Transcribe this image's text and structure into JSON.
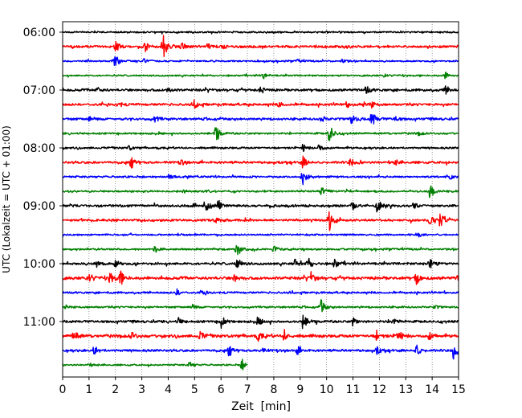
{
  "chart_data": {
    "type": "line",
    "subtype": "seismogram-helicorder",
    "title": "",
    "xlabel": "Zeit  [min]",
    "ylabel": "UTC (Lokalzeit = UTC + 01:00)",
    "xlim": [
      0,
      15
    ],
    "x_ticks": [
      "0",
      "1",
      "2",
      "3",
      "4",
      "5",
      "6",
      "7",
      "8",
      "9",
      "10",
      "11",
      "12",
      "13",
      "14",
      "15"
    ],
    "y_ticks": [
      "06:00",
      "07:00",
      "08:00",
      "09:00",
      "10:00",
      "11:00"
    ],
    "row_minutes": 15,
    "start_time": "06:00",
    "end_time": "12:00",
    "x_grid": true,
    "colors": [
      "#000000",
      "#ff0000",
      "#0000ff",
      "#008000"
    ],
    "traces": [
      {
        "row": 0,
        "color": "#000000",
        "amp": 1.0,
        "events": []
      },
      {
        "row": 1,
        "color": "#ff0000",
        "amp": 1.5,
        "events": [
          [
            2.0,
            6
          ],
          [
            3.1,
            7
          ],
          [
            3.8,
            16
          ],
          [
            4.5,
            5
          ],
          [
            5.5,
            4
          ],
          [
            6.0,
            3
          ]
        ]
      },
      {
        "row": 2,
        "color": "#0000ff",
        "amp": 1.0,
        "events": [
          [
            2.0,
            9
          ],
          [
            3.1,
            3
          ],
          [
            8.9,
            2
          ],
          [
            10.6,
            3
          ]
        ]
      },
      {
        "row": 3,
        "color": "#008000",
        "amp": 1.0,
        "events": [
          [
            7.6,
            4
          ],
          [
            12.2,
            2
          ],
          [
            14.5,
            4
          ]
        ]
      },
      {
        "row": 4,
        "color": "#000000",
        "amp": 1.5,
        "events": [
          [
            1.3,
            3
          ],
          [
            4.0,
            3
          ],
          [
            7.5,
            4
          ],
          [
            11.5,
            5
          ],
          [
            14.5,
            5
          ]
        ]
      },
      {
        "row": 5,
        "color": "#ff0000",
        "amp": 1.5,
        "events": [
          [
            2.1,
            3
          ],
          [
            5.0,
            4
          ],
          [
            8.2,
            3
          ],
          [
            10.8,
            3
          ],
          [
            11.7,
            4
          ]
        ]
      },
      {
        "row": 6,
        "color": "#0000ff",
        "amp": 1.5,
        "events": [
          [
            1.0,
            3
          ],
          [
            3.5,
            4
          ],
          [
            9.8,
            4
          ],
          [
            10.9,
            8
          ],
          [
            11.7,
            11
          ],
          [
            12.6,
            3
          ]
        ]
      },
      {
        "row": 7,
        "color": "#008000",
        "amp": 1.2,
        "events": [
          [
            5.8,
            10
          ],
          [
            10.1,
            13
          ],
          [
            13.5,
            2
          ]
        ]
      },
      {
        "row": 8,
        "color": "#000000",
        "amp": 1.2,
        "events": [
          [
            2.5,
            3
          ],
          [
            9.1,
            5
          ],
          [
            9.7,
            5
          ]
        ]
      },
      {
        "row": 9,
        "color": "#ff0000",
        "amp": 1.5,
        "events": [
          [
            2.6,
            6
          ],
          [
            4.5,
            3
          ],
          [
            9.1,
            7
          ],
          [
            10.9,
            5
          ],
          [
            12.6,
            3
          ]
        ]
      },
      {
        "row": 10,
        "color": "#0000ff",
        "amp": 1.2,
        "events": [
          [
            4.0,
            3
          ],
          [
            9.1,
            10
          ],
          [
            14.7,
            3
          ]
        ]
      },
      {
        "row": 11,
        "color": "#008000",
        "amp": 1.2,
        "events": [
          [
            4.6,
            2
          ],
          [
            9.8,
            5
          ],
          [
            13.9,
            10
          ]
        ]
      },
      {
        "row": 12,
        "color": "#000000",
        "amp": 1.5,
        "events": [
          [
            5.4,
            8
          ],
          [
            5.9,
            7
          ],
          [
            11.0,
            4
          ],
          [
            11.9,
            9
          ],
          [
            13.3,
            4
          ]
        ]
      },
      {
        "row": 13,
        "color": "#ff0000",
        "amp": 1.5,
        "events": [
          [
            5.8,
            4
          ],
          [
            10.1,
            14
          ],
          [
            14.3,
            10
          ],
          [
            13.9,
            5
          ]
        ]
      },
      {
        "row": 14,
        "color": "#0000ff",
        "amp": 1.0,
        "events": [
          [
            13.5,
            2
          ]
        ]
      },
      {
        "row": 15,
        "color": "#008000",
        "amp": 1.2,
        "events": [
          [
            3.5,
            4
          ],
          [
            6.6,
            10
          ],
          [
            8.0,
            4
          ]
        ]
      },
      {
        "row": 16,
        "color": "#000000",
        "amp": 1.5,
        "events": [
          [
            1.3,
            5
          ],
          [
            2.0,
            5
          ],
          [
            6.6,
            8
          ],
          [
            8.8,
            6
          ],
          [
            9.3,
            7
          ],
          [
            10.3,
            6
          ],
          [
            13.9,
            7
          ]
        ]
      },
      {
        "row": 17,
        "color": "#ff0000",
        "amp": 1.8,
        "events": [
          [
            1.0,
            6
          ],
          [
            1.8,
            8
          ],
          [
            2.2,
            8
          ],
          [
            6.5,
            4
          ],
          [
            9.4,
            7
          ],
          [
            13.4,
            8
          ],
          [
            15.0,
            5
          ]
        ]
      },
      {
        "row": 18,
        "color": "#0000ff",
        "amp": 1.2,
        "events": [
          [
            4.3,
            5
          ],
          [
            5.3,
            3
          ]
        ]
      },
      {
        "row": 19,
        "color": "#008000",
        "amp": 1.2,
        "events": [
          [
            4.9,
            3
          ],
          [
            9.8,
            9
          ],
          [
            14.1,
            2
          ]
        ]
      },
      {
        "row": 20,
        "color": "#000000",
        "amp": 1.5,
        "events": [
          [
            4.4,
            4
          ],
          [
            6.0,
            8
          ],
          [
            7.4,
            5
          ],
          [
            9.1,
            10
          ],
          [
            11.0,
            5
          ],
          [
            12.5,
            6
          ]
        ]
      },
      {
        "row": 21,
        "color": "#ff0000",
        "amp": 1.8,
        "events": [
          [
            0.4,
            8
          ],
          [
            2.6,
            5
          ],
          [
            5.2,
            5
          ],
          [
            7.4,
            6
          ],
          [
            8.4,
            7
          ],
          [
            11.9,
            6
          ],
          [
            12.7,
            9
          ],
          [
            13.9,
            5
          ]
        ]
      },
      {
        "row": 22,
        "color": "#0000ff",
        "amp": 1.5,
        "events": [
          [
            1.2,
            6
          ],
          [
            6.3,
            6
          ],
          [
            7.5,
            4
          ],
          [
            8.9,
            5
          ],
          [
            11.9,
            4
          ],
          [
            13.4,
            8
          ],
          [
            14.8,
            11
          ]
        ]
      },
      {
        "row": 23,
        "color": "#008000",
        "amp": 1.0,
        "events": [
          [
            1.0,
            2
          ],
          [
            4.8,
            4
          ],
          [
            6.8,
            7
          ],
          [
            8.4,
            2
          ]
        ]
      }
    ]
  }
}
